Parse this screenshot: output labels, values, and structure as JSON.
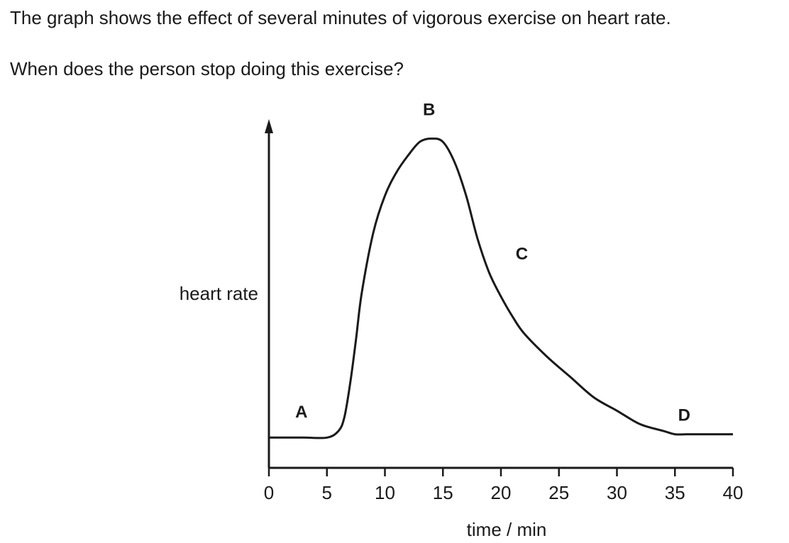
{
  "question": {
    "line1": "The graph shows the effect of several minutes of vigorous exercise on heart rate.",
    "line2": "When does the person stop doing this exercise?"
  },
  "chart_data": {
    "type": "line",
    "title": "",
    "xlabel": "time / min",
    "ylabel": "heart rate",
    "xlim": [
      0,
      40
    ],
    "ylim": [
      0,
      1
    ],
    "x_ticks": [
      0,
      5,
      10,
      15,
      20,
      25,
      30,
      35,
      40
    ],
    "grid": false,
    "y_tick_labels_shown": false,
    "series": [
      {
        "x": [
          0,
          3,
          5,
          6,
          6.5,
          7,
          7.5,
          8,
          9,
          10,
          11,
          12,
          13,
          14,
          15,
          16,
          17,
          18,
          19,
          20,
          21,
          22,
          24,
          26,
          28,
          30,
          32,
          34,
          35,
          36,
          38,
          40
        ],
        "y": [
          0.09,
          0.09,
          0.09,
          0.11,
          0.15,
          0.25,
          0.38,
          0.52,
          0.7,
          0.81,
          0.88,
          0.93,
          0.97,
          0.98,
          0.97,
          0.91,
          0.81,
          0.68,
          0.58,
          0.51,
          0.45,
          0.4,
          0.33,
          0.27,
          0.21,
          0.17,
          0.13,
          0.11,
          0.1,
          0.1,
          0.1,
          0.1
        ]
      }
    ],
    "annotations": [
      {
        "text": "A",
        "x": 2.8,
        "y": 0.15
      },
      {
        "text": "B",
        "x": 13.8,
        "y": 1.05
      },
      {
        "text": "C",
        "x": 21.8,
        "y": 0.62
      },
      {
        "text": "D",
        "x": 35.8,
        "y": 0.14
      }
    ],
    "line_color": "#1a1a1a"
  }
}
